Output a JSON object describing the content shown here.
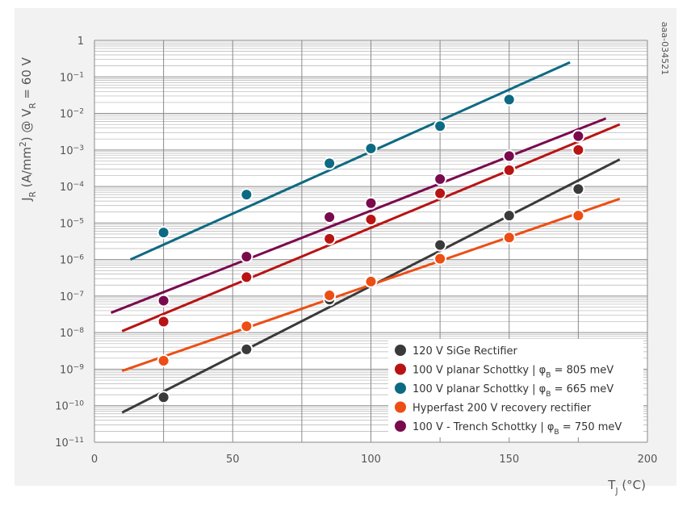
{
  "chart_data": {
    "type": "scatter",
    "watermark": "aaa-034521",
    "xlabel": {
      "main": "T",
      "sub": "J",
      "tail": " (°C)"
    },
    "ylabel": {
      "parts": [
        {
          "t": "J",
          "s": "normal"
        },
        {
          "t": "R",
          "s": "sub"
        },
        {
          "t": " (A/mm",
          "s": "normal"
        },
        {
          "t": "2",
          "s": "sup"
        },
        {
          "t": ") @ V",
          "s": "normal"
        },
        {
          "t": "R",
          "s": "sub"
        },
        {
          "t": " = 60 V",
          "s": "normal"
        }
      ]
    },
    "xlim": [
      0,
      200
    ],
    "ylim_log10": [
      -11,
      0
    ],
    "y_scale": "log",
    "grid": true,
    "legend_position": "bottom-right",
    "x_ticks": [
      {
        "value": 0,
        "label": "0"
      },
      {
        "value": 50,
        "label": "50"
      },
      {
        "value": 100,
        "label": "100"
      },
      {
        "value": 150,
        "label": "150"
      },
      {
        "value": 200,
        "label": "200"
      }
    ],
    "y_ticks": [
      {
        "exp": 0,
        "base": "1",
        "sup": ""
      },
      {
        "exp": -1,
        "base": "10",
        "sup": "−1"
      },
      {
        "exp": -2,
        "base": "10",
        "sup": "−2"
      },
      {
        "exp": -3,
        "base": "10",
        "sup": "−3"
      },
      {
        "exp": -4,
        "base": "10",
        "sup": "−4"
      },
      {
        "exp": -5,
        "base": "10",
        "sup": "−5"
      },
      {
        "exp": -6,
        "base": "10",
        "sup": "−6"
      },
      {
        "exp": -7,
        "base": "10",
        "sup": "−7"
      },
      {
        "exp": -8,
        "base": "10",
        "sup": "−8"
      },
      {
        "exp": -9,
        "base": "10",
        "sup": "−9"
      },
      {
        "exp": -10,
        "base": "10",
        "sup": "−10"
      },
      {
        "exp": -11,
        "base": "10",
        "sup": "−11"
      }
    ],
    "series": [
      {
        "name": "120 V SiGe Rectifier",
        "legend_parts": [
          {
            "t": "120 V SiGe Rectifier",
            "s": "normal"
          }
        ],
        "color": "#3a3a3a",
        "x": [
          25,
          55,
          85,
          100,
          125,
          150,
          175
        ],
        "y": [
          1.7e-10,
          3.5e-09,
          8e-08,
          2.7e-07,
          2.5e-06,
          1.6e-05,
          8.5e-05
        ],
        "fit_x": [
          10,
          190
        ],
        "fit_y": [
          6.5e-11,
          0.00055
        ]
      },
      {
        "name": "100 V planar Schottky | φB = 805 meV",
        "legend_parts": [
          {
            "t": "100 V planar Schottky | φ",
            "s": "normal"
          },
          {
            "t": "B",
            "s": "sub"
          },
          {
            "t": " = 805 meV",
            "s": "normal"
          }
        ],
        "color": "#b81414",
        "x": [
          25,
          55,
          85,
          100,
          125,
          150,
          175
        ],
        "y": [
          2e-08,
          3.3e-07,
          3.7e-06,
          1.25e-05,
          6.5e-05,
          0.00028,
          0.001
        ],
        "fit_x": [
          10,
          190
        ],
        "fit_y": [
          1.1e-08,
          0.005
        ]
      },
      {
        "name": "100 V planar Schottky | φB = 665 meV",
        "legend_parts": [
          {
            "t": "100 V planar Schottky | φ",
            "s": "normal"
          },
          {
            "t": "B",
            "s": "sub"
          },
          {
            "t": " = 665 meV",
            "s": "normal"
          }
        ],
        "color": "#0e6a82",
        "x": [
          25,
          55,
          85,
          100,
          125,
          150
        ],
        "y": [
          5.5e-06,
          6e-05,
          0.00043,
          0.0011,
          0.0045,
          0.024
        ],
        "fit_x": [
          13,
          172
        ],
        "fit_y": [
          1e-06,
          0.25
        ]
      },
      {
        "name": "Hyperfast 200 V recovery rectifier",
        "legend_parts": [
          {
            "t": "Hyperfast 200 V recovery rectifier",
            "s": "normal"
          }
        ],
        "color": "#ec4e14",
        "x": [
          25,
          55,
          85,
          100,
          125,
          150,
          175
        ],
        "y": [
          1.7e-09,
          1.5e-08,
          1.05e-07,
          2.5e-07,
          1.05e-06,
          4e-06,
          1.6e-05
        ],
        "fit_x": [
          10,
          190
        ],
        "fit_y": [
          9e-10,
          4.6e-05
        ]
      },
      {
        "name": "100 V - Trench Schottky | φB = 750 meV",
        "legend_parts": [
          {
            "t": "100 V - Trench Schottky | φ",
            "s": "normal"
          },
          {
            "t": "B",
            "s": "sub"
          },
          {
            "t": " = 750 meV",
            "s": "normal"
          }
        ],
        "color": "#7a0a4e",
        "x": [
          25,
          55,
          85,
          100,
          125,
          150,
          175
        ],
        "y": [
          7.5e-08,
          1.2e-06,
          1.45e-05,
          3.5e-05,
          0.00016,
          0.00068,
          0.0024
        ],
        "fit_x": [
          6,
          185
        ],
        "fit_y": [
          3.5e-08,
          0.0073
        ]
      }
    ]
  }
}
